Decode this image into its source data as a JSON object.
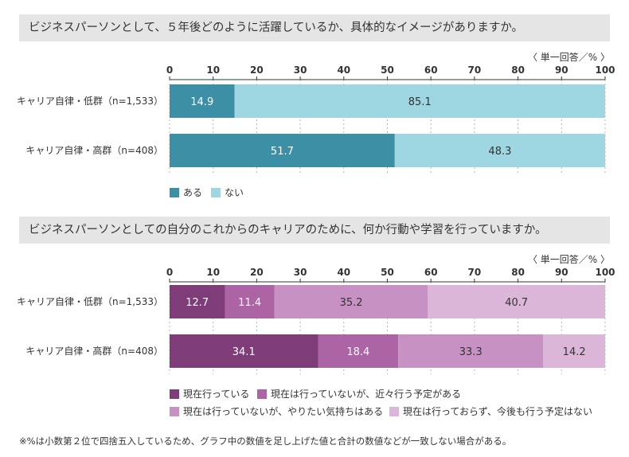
{
  "chart_data": [
    {
      "type": "bar",
      "orientation": "horizontal-stacked",
      "title": "ビジネスパーソンとして、５年後どのように活躍しているか、具体的なイメージがありますか。",
      "unit_label": "〈 単一回答／% 〉",
      "xlim": [
        0,
        100
      ],
      "ticks": [
        "0",
        "10",
        "20",
        "30",
        "40",
        "50",
        "60",
        "70",
        "80",
        "90",
        "100"
      ],
      "categories": [
        "キャリア自律・低群（n=1,533）",
        "キャリア自律・高群（n=408）"
      ],
      "series": [
        {
          "name": "ある",
          "color": "#3d8fa6",
          "label_color": "#ffffff",
          "values": [
            14.9,
            51.7
          ],
          "labels": [
            "14.9",
            "51.7"
          ]
        },
        {
          "name": "ない",
          "color": "#9ed6e2",
          "label_color": "#333333",
          "values": [
            85.1,
            48.3
          ],
          "labels": [
            "85.1",
            "48.3"
          ]
        }
      ]
    },
    {
      "type": "bar",
      "orientation": "horizontal-stacked",
      "title": "ビジネスパーソンとしての自分のこれからのキャリアのために、何か行動や学習を行っていますか。",
      "unit_label": "〈 単一回答／% 〉",
      "xlim": [
        0,
        100
      ],
      "ticks": [
        "0",
        "10",
        "20",
        "30",
        "40",
        "50",
        "60",
        "70",
        "80",
        "90",
        "100"
      ],
      "categories": [
        "キャリア自律・低群（n=1,533）",
        "キャリア自律・高群（n=408）"
      ],
      "series": [
        {
          "name": "現在行っている",
          "color": "#7e3c78",
          "label_color": "#ffffff",
          "values": [
            12.7,
            34.1
          ],
          "labels": [
            "12.7",
            "34.1"
          ]
        },
        {
          "name": "現在は行っていないが、近々行う予定がある",
          "color": "#ad64a4",
          "label_color": "#ffffff",
          "values": [
            11.4,
            18.4
          ],
          "labels": [
            "11.4",
            "18.4"
          ]
        },
        {
          "name": "現在は行っていないが、やりたい気持ちはある",
          "color": "#c791c3",
          "label_color": "#333333",
          "values": [
            35.2,
            33.3
          ],
          "labels": [
            "35.2",
            "33.3"
          ]
        },
        {
          "name": "現在は行っておらず、今後も行う予定はない",
          "color": "#dbb6d8",
          "label_color": "#333333",
          "values": [
            40.7,
            14.2
          ],
          "labels": [
            "40.7",
            "14.2"
          ]
        }
      ]
    }
  ],
  "footnote": "※%は小数第２位で四捨五入しているため、グラフ中の数値を足し上げた値と合計の数値などが一致しない場合がある。"
}
